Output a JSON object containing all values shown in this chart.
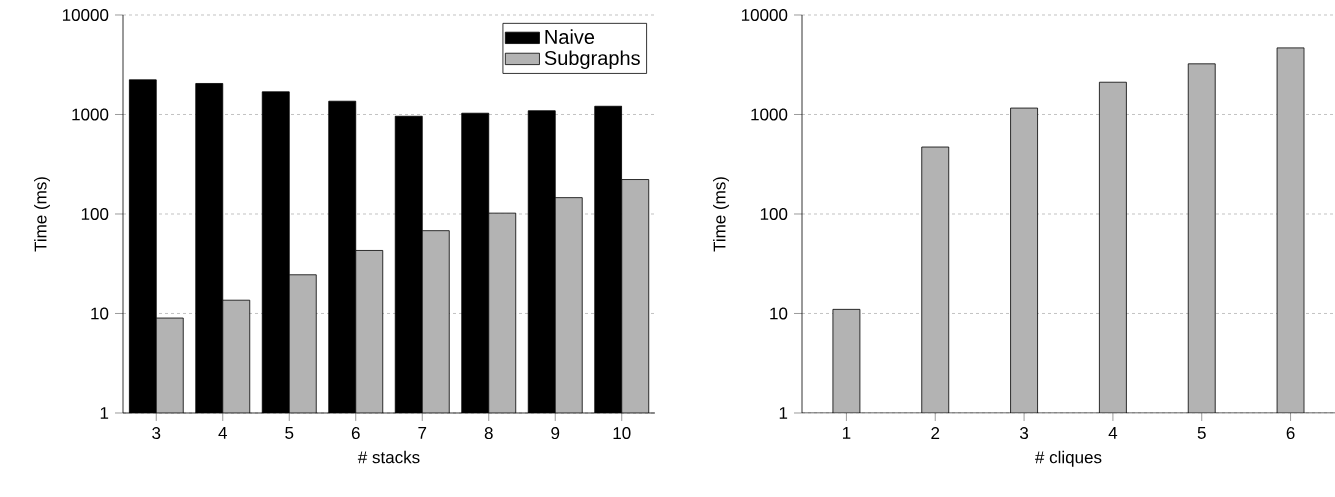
{
  "chart_data": [
    {
      "type": "bar",
      "xlabel": "# stacks",
      "ylabel": "Time (ms)",
      "categories": [
        "3",
        "4",
        "5",
        "6",
        "7",
        "8",
        "9",
        "10"
      ],
      "series": [
        {
          "name": "Naive",
          "color": "#000000",
          "values": [
            2230,
            2050,
            1690,
            1360,
            960,
            1030,
            1090,
            1210
          ]
        },
        {
          "name": "Subgraphs",
          "color": "#b3b3b3",
          "values": [
            9,
            13.6,
            24.5,
            43,
            68,
            102,
            146,
            222
          ]
        }
      ],
      "log": "y",
      "ylim": [
        1,
        10000
      ],
      "yticks": [
        1,
        10,
        100,
        1000,
        10000
      ],
      "grid": "y",
      "legend": "top right"
    },
    {
      "type": "bar",
      "xlabel": "# cliques",
      "ylabel": "Time (ms)",
      "categories": [
        "1",
        "2",
        "3",
        "4",
        "5",
        "6"
      ],
      "series": [
        {
          "color": "#b3b3b3",
          "values": [
            11,
            471,
            1160,
            2110,
            3230,
            4670
          ]
        }
      ],
      "log": "y",
      "ylim": [
        1,
        10000
      ],
      "yticks": [
        1,
        10,
        100,
        1000,
        10000
      ],
      "grid": "y"
    }
  ]
}
